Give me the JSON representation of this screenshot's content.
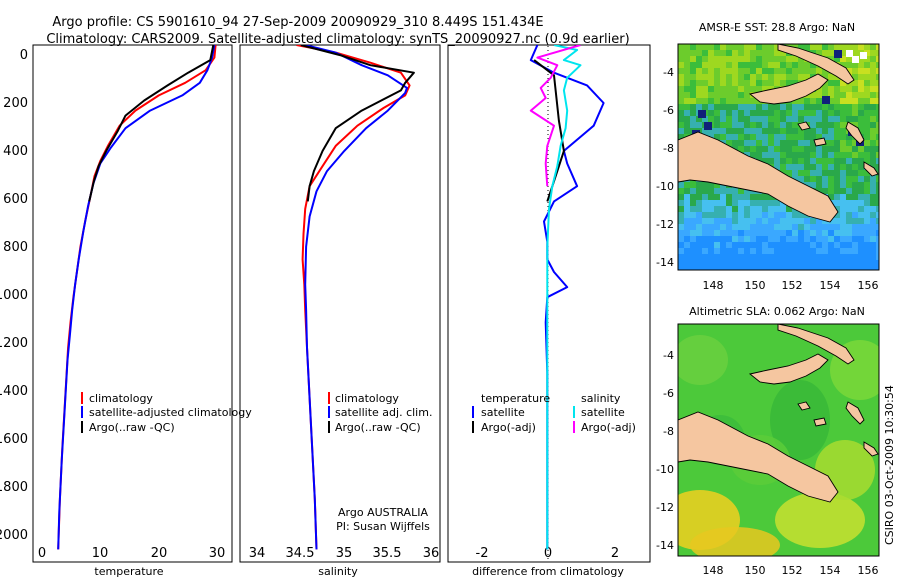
{
  "figure": {
    "title_line1": "Argo profile: CS 5901610_94 27-Sep-2009 20090929_310 8.449S 151.434E",
    "title_line2": "Climatology: CARS2009. Satellite-adjusted climatology: synTS_20090927.nc (0.9d earlier)",
    "side_label": "CSIRO 03-Oct-2009 10:30:54",
    "pi_line1": "Argo AUSTRALIA",
    "pi_line2": "PI: Susan Wijffels"
  },
  "colors": {
    "climatology": "#ff0000",
    "satellite": "#0000ff",
    "argo": "#000000",
    "satellite_salinity": "#00e5ee",
    "argo_salinity": "#ff00ff",
    "land": "#f5c6a0"
  },
  "chart_data": [
    {
      "type": "line",
      "id": "temperature",
      "xlabel": "temperature",
      "ylabel": "",
      "xlim": [
        -2,
        32
      ],
      "ylim": [
        2050,
        0
      ],
      "xticks": [
        "0",
        "10",
        "20",
        "30"
      ],
      "yticks": [
        "0",
        "200",
        "400",
        "600",
        "800",
        "1000",
        "1200",
        "1400",
        "1600",
        "1800",
        "2000"
      ],
      "legend": [
        "climatology",
        "satellite-adjusted climatology",
        "Argo(..raw -QC)"
      ],
      "series": [
        {
          "name": "climatology",
          "color": "#ff0000",
          "points": [
            [
              29.2,
              0
            ],
            [
              29.0,
              50
            ],
            [
              27.5,
              100
            ],
            [
              24,
              150
            ],
            [
              19.5,
              200
            ],
            [
              15.5,
              260
            ],
            [
              12.8,
              320
            ],
            [
              10.8,
              400
            ],
            [
              9.5,
              460
            ],
            [
              8.5,
              520
            ],
            [
              7.8,
              600
            ],
            [
              6.9,
              700
            ],
            [
              6.1,
              800
            ],
            [
              5.5,
              900
            ],
            [
              4.9,
              1000
            ],
            [
              4.4,
              1100
            ],
            [
              4.0,
              1200
            ],
            [
              3.5,
              1400
            ],
            [
              3.0,
              1600
            ],
            [
              2.6,
              1800
            ],
            [
              2.3,
              2000
            ]
          ]
        },
        {
          "name": "satellite-adjusted climatology",
          "color": "#0000ff",
          "points": [
            [
              29.0,
              0
            ],
            [
              28.6,
              50
            ],
            [
              27.8,
              100
            ],
            [
              26.5,
              150
            ],
            [
              23.5,
              200
            ],
            [
              18,
              260
            ],
            [
              13.8,
              330
            ],
            [
              11.2,
              410
            ],
            [
              9.5,
              470
            ],
            [
              8.3,
              550
            ],
            [
              7.4,
              640
            ],
            [
              6.6,
              740
            ],
            [
              5.8,
              850
            ],
            [
              5.2,
              950
            ],
            [
              4.7,
              1050
            ],
            [
              4.3,
              1150
            ],
            [
              3.9,
              1250
            ],
            [
              3.4,
              1450
            ],
            [
              2.9,
              1650
            ],
            [
              2.5,
              1850
            ],
            [
              2.3,
              2000
            ]
          ]
        },
        {
          "name": "Argo(..raw -QC)",
          "color": "#000000",
          "points": [
            [
              28.8,
              0
            ],
            [
              28.3,
              60
            ],
            [
              24.5,
              110
            ],
            [
              21,
              160
            ],
            [
              17,
              220
            ],
            [
              13.8,
              280
            ],
            [
              12.5,
              340
            ],
            [
              10.5,
              420
            ],
            [
              9.2,
              480
            ],
            [
              8.4,
              540
            ],
            [
              7.6,
              620
            ]
          ]
        }
      ]
    },
    {
      "type": "line",
      "id": "salinity",
      "xlabel": "salinity",
      "ylabel": "",
      "xlim": [
        33.8,
        36.1
      ],
      "ylim": [
        2050,
        0
      ],
      "xticks": [
        "34",
        "34.5",
        "35",
        "35.5",
        "36"
      ],
      "legend": [
        "climatology",
        "satellite adj. clim.",
        "Argo(..raw -QC)"
      ],
      "series": [
        {
          "name": "climatology",
          "color": "#ff0000",
          "points": [
            [
              34.45,
              0
            ],
            [
              34.9,
              30
            ],
            [
              35.3,
              70
            ],
            [
              35.65,
              110
            ],
            [
              35.75,
              160
            ],
            [
              35.7,
              200
            ],
            [
              35.45,
              250
            ],
            [
              35.15,
              320
            ],
            [
              34.9,
              400
            ],
            [
              34.75,
              480
            ],
            [
              34.6,
              560
            ],
            [
              34.55,
              650
            ],
            [
              34.53,
              750
            ],
            [
              34.52,
              850
            ],
            [
              34.54,
              950
            ],
            [
              34.55,
              1050
            ],
            [
              34.57,
              1200
            ],
            [
              34.6,
              1400
            ],
            [
              34.63,
              1600
            ],
            [
              34.66,
              1800
            ],
            [
              34.68,
              2000
            ]
          ]
        },
        {
          "name": "satellite adj. clim.",
          "color": "#0000ff",
          "points": [
            [
              34.55,
              0
            ],
            [
              34.9,
              30
            ],
            [
              35.2,
              80
            ],
            [
              35.5,
              120
            ],
            [
              35.72,
              170
            ],
            [
              35.7,
              190
            ],
            [
              35.5,
              260
            ],
            [
              35.25,
              330
            ],
            [
              35.0,
              420
            ],
            [
              34.8,
              500
            ],
            [
              34.68,
              580
            ],
            [
              34.6,
              680
            ],
            [
              34.56,
              800
            ],
            [
              34.55,
              950
            ],
            [
              34.56,
              1050
            ],
            [
              34.57,
              1200
            ],
            [
              34.6,
              1400
            ],
            [
              34.63,
              1600
            ],
            [
              34.66,
              1800
            ],
            [
              34.68,
              2000
            ]
          ]
        },
        {
          "name": "Argo(..raw -QC)",
          "color": "#000000",
          "points": [
            [
              34.5,
              0
            ],
            [
              34.95,
              40
            ],
            [
              35.3,
              80
            ],
            [
              35.8,
              110
            ],
            [
              35.7,
              150
            ],
            [
              35.65,
              180
            ],
            [
              35.2,
              260
            ],
            [
              34.9,
              330
            ],
            [
              34.75,
              420
            ],
            [
              34.65,
              500
            ],
            [
              34.6,
              560
            ],
            [
              34.58,
              620
            ]
          ]
        }
      ]
    },
    {
      "type": "line",
      "id": "difference",
      "xlabel": "difference from climatology",
      "ylabel": "",
      "xlim": [
        -3,
        3.1
      ],
      "ylim": [
        2050,
        0
      ],
      "xticks": [
        "-2",
        "0",
        "2"
      ],
      "legend": [
        "temperature",
        "satellite",
        "Argo(-adj)",
        "salinity",
        "satellite",
        "Argo(-adj)"
      ],
      "series": [
        {
          "name": "temperature satellite",
          "color": "#0000ff",
          "points": [
            [
              -0.3,
              0
            ],
            [
              -0.5,
              60
            ],
            [
              0.2,
              110
            ],
            [
              1.2,
              160
            ],
            [
              1.7,
              230
            ],
            [
              1.4,
              320
            ],
            [
              0.5,
              420
            ],
            [
              0.6,
              470
            ],
            [
              0.9,
              560
            ],
            [
              0.2,
              620
            ],
            [
              -0.1,
              700
            ],
            [
              0.0,
              780
            ],
            [
              0.0,
              850
            ],
            [
              0.2,
              900
            ],
            [
              0.6,
              960
            ],
            [
              0.0,
              1000
            ],
            [
              -0.05,
              1100
            ],
            [
              0.0,
              1300
            ],
            [
              0.0,
              1500
            ],
            [
              0.0,
              1800
            ],
            [
              0.0,
              2000
            ]
          ]
        },
        {
          "name": "temperature Argo(-adj)",
          "color": "#000000",
          "points": [
            [
              -0.4,
              60
            ],
            [
              0.2,
              120
            ],
            [
              0.35,
              300
            ],
            [
              0.5,
              420
            ],
            [
              0.2,
              540
            ],
            [
              0.0,
              620
            ]
          ]
        },
        {
          "name": "salinity satellite",
          "color": "#00e5ee",
          "points": [
            [
              0.2,
              0
            ],
            [
              0.9,
              20
            ],
            [
              0.5,
              60
            ],
            [
              1.0,
              80
            ],
            [
              0.6,
              130
            ],
            [
              0.5,
              180
            ],
            [
              0.6,
              260
            ],
            [
              0.55,
              330
            ],
            [
              0.4,
              400
            ],
            [
              0.3,
              480
            ],
            [
              0.15,
              560
            ],
            [
              0.05,
              650
            ],
            [
              0.0,
              800
            ],
            [
              0.0,
              1000
            ],
            [
              0.0,
              1300
            ],
            [
              0.0,
              1600
            ],
            [
              0.0,
              2000
            ]
          ]
        },
        {
          "name": "salinity Argo(-adj)",
          "color": "#ff00ff",
          "points": [
            [
              1.0,
              0
            ],
            [
              -0.3,
              50
            ],
            [
              0.3,
              80
            ],
            [
              0.1,
              130
            ],
            [
              -0.2,
              170
            ],
            [
              -0.05,
              210
            ],
            [
              -0.5,
              260
            ],
            [
              0.2,
              320
            ],
            [
              0.0,
              400
            ],
            [
              -0.05,
              470
            ],
            [
              0.0,
              560
            ]
          ]
        }
      ]
    },
    {
      "type": "heatmap",
      "id": "sst-map",
      "title": "AMSR-E SST: 28.8 Argo: NaN",
      "xlim": [
        146.3,
        156.6
      ],
      "ylim": [
        -14.5,
        -2.8
      ],
      "xticks": [
        "148",
        "150",
        "152",
        "154",
        "156"
      ],
      "yticks": [
        "-4",
        "-6",
        "-8",
        "-10",
        "-12",
        "-14"
      ]
    },
    {
      "type": "heatmap",
      "id": "sla-map",
      "title": "Altimetric SLA: 0.062 Argo: NaN",
      "xlim": [
        146.3,
        156.6
      ],
      "ylim": [
        -14.5,
        -2.8
      ],
      "xticks": [
        "148",
        "150",
        "152",
        "154",
        "156"
      ],
      "yticks": [
        "-4",
        "-6",
        "-8",
        "-10",
        "-12",
        "-14"
      ]
    }
  ]
}
